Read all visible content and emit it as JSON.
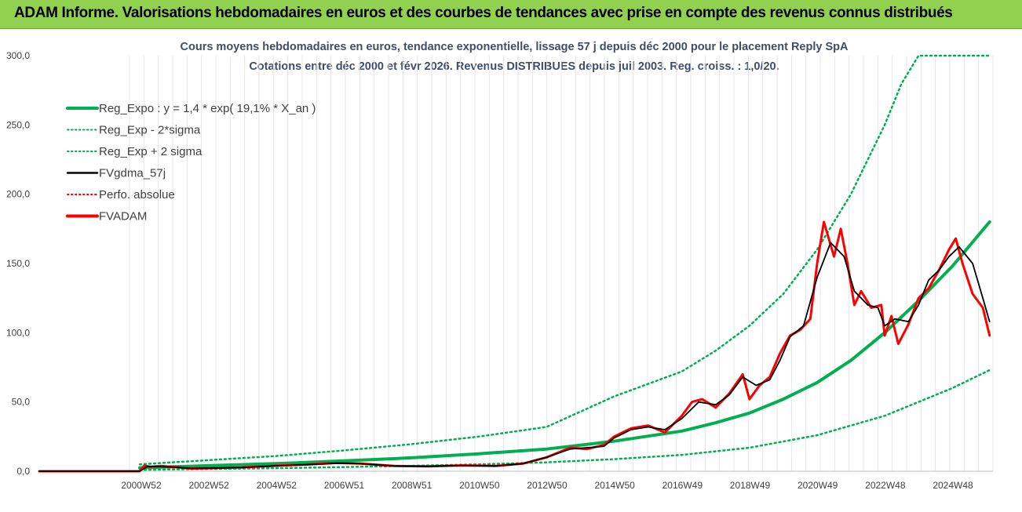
{
  "header": {
    "title": "ADAM Informe. Valorisations hebdomadaires en euros et des courbes de tendances avec prise en compte des revenus connus distribués"
  },
  "colors": {
    "header_bg": "#92d050",
    "reg_expo": "#00b050",
    "fvgdma": "#000000",
    "perfo": "#ff0000",
    "fvadam": "#ff0000",
    "grid": "#e6e6e6"
  },
  "chart_data": {
    "type": "line",
    "title_line1": "Cours moyens hebdomadaires en euros, tendance exponentielle, lissage 57 j depuis déc 2000 pour le placement Reply SpA",
    "title_line2": "Cotations entre déc 2000 et févr 2026. Revenus DISTRIBUES depuis juil 2003. Reg. croiss. : 1,0/20.",
    "y_ticks": [
      "0,0",
      "50,0",
      "100,0",
      "150,0",
      "200,0",
      "250,0",
      "300,0"
    ],
    "ylim": [
      0,
      300
    ],
    "x_ticks": [
      "2000W52",
      "2002W52",
      "2004W52",
      "2006W51",
      "2008W51",
      "2010W50",
      "2012W50",
      "2014W50",
      "2016W49",
      "2018W49",
      "2020W49",
      "2022W48",
      "2024W48"
    ],
    "xlim": [
      1998.0,
      2026.2
    ],
    "grid": "vertical",
    "legend_position": "top-left",
    "legend": [
      {
        "label": "Reg_Expo : y = 1,4 * exp( 19,1% *  X_an )",
        "style": "solid-thick",
        "color": "#00b050"
      },
      {
        "label": "Reg_Exp - 2*sigma",
        "style": "dotted",
        "color": "#00b050"
      },
      {
        "label": "Reg_Exp + 2 sigma",
        "style": "dotted",
        "color": "#00b050"
      },
      {
        "label": "FVgdma_57j",
        "style": "solid",
        "color": "#000000"
      },
      {
        "label": "Perfo. absolue",
        "style": "dotted",
        "color": "#ff0000"
      },
      {
        "label": "FVADAM",
        "style": "solid-thick",
        "color": "#ff0000"
      }
    ],
    "series": [
      {
        "name": "Reg_Expo : y = 1,4 * exp( 19,1% *  X_an )",
        "x": [
          2000.97,
          2003,
          2005,
          2007,
          2009,
          2011,
          2013,
          2015,
          2017,
          2018,
          2019,
          2020,
          2021,
          2022,
          2023,
          2024,
          2025,
          2026.1
        ],
        "y": [
          2.5,
          4.0,
          5.5,
          7.5,
          9.7,
          12.6,
          16.0,
          21.7,
          29.0,
          35.0,
          42.0,
          52.0,
          64.0,
          80.0,
          100.0,
          123.0,
          148.0,
          180.0
        ]
      },
      {
        "name": "Reg_Exp - 2*sigma",
        "x": [
          2000.97,
          2003,
          2005,
          2007,
          2009,
          2011,
          2013,
          2015,
          2017,
          2019,
          2021,
          2023,
          2025,
          2026.1
        ],
        "y": [
          1.0,
          1.6,
          2.2,
          3.0,
          3.9,
          5.0,
          6.4,
          8.7,
          11.8,
          17.0,
          26.0,
          40.0,
          60.0,
          73.0
        ]
      },
      {
        "name": "Reg_Exp + 2 sigma",
        "x": [
          2000.97,
          2003,
          2005,
          2007,
          2009,
          2011,
          2013,
          2015,
          2017,
          2018,
          2019,
          2020,
          2021,
          2022,
          2023,
          2023.5,
          2024,
          2025,
          2026.1
        ],
        "y": [
          5.0,
          8.0,
          11.0,
          15.0,
          19.5,
          25.0,
          32.0,
          54.0,
          72.0,
          87.0,
          105.0,
          128.0,
          160.0,
          200.0,
          250.0,
          280.0,
          300.0,
          300.0,
          300.0
        ]
      },
      {
        "name": "FVgdma_57j",
        "x": [
          1998.0,
          2000.97,
          2001.2,
          2002,
          2002.5,
          2003,
          2004,
          2005,
          2006,
          2006.8,
          2007.5,
          2008.5,
          2009.5,
          2010.5,
          2011.5,
          2012.3,
          2013,
          2013.7,
          2014.2,
          2014.7,
          2015,
          2015.5,
          2016,
          2016.5,
          2017,
          2017.5,
          2018,
          2018.4,
          2018.8,
          2019.2,
          2019.6,
          2019.9,
          2020.2,
          2020.6,
          2021,
          2021.4,
          2021.8,
          2022.1,
          2022.5,
          2022.8,
          2023.0,
          2023.3,
          2023.7,
          2024.0,
          2024.3,
          2024.6,
          2024.9,
          2025.2,
          2025.6,
          2025.9,
          2026.1
        ],
        "y": [
          0,
          0,
          3.5,
          3.0,
          2.0,
          2.2,
          2.8,
          3.8,
          4.8,
          5.8,
          5.5,
          3.8,
          3.5,
          4.2,
          3.8,
          5.5,
          10.0,
          16.0,
          17.0,
          18.0,
          24.0,
          30.0,
          32.0,
          30.0,
          38.0,
          50.0,
          48.0,
          55.0,
          68.0,
          62.0,
          66.0,
          80.0,
          97.0,
          105.0,
          140.0,
          165.0,
          155.0,
          130.0,
          120.0,
          118.0,
          105.0,
          110.0,
          108.0,
          120.0,
          138.0,
          145.0,
          155.0,
          162.0,
          150.0,
          125.0,
          108.0
        ]
      },
      {
        "name": "FVADAM",
        "x": [
          1998.0,
          2000.97,
          2001.1,
          2001.3,
          2001.6,
          2002,
          2002.5,
          2003,
          2004,
          2005,
          2006,
          2006.8,
          2007.5,
          2008.5,
          2009.5,
          2010.5,
          2011.5,
          2012.3,
          2013,
          2013.7,
          2014.2,
          2014.7,
          2015,
          2015.5,
          2016,
          2016.5,
          2017,
          2017.3,
          2017.6,
          2018,
          2018.4,
          2018.8,
          2019.0,
          2019.3,
          2019.6,
          2019.9,
          2020.2,
          2020.5,
          2020.8,
          2021,
          2021.2,
          2021.5,
          2021.7,
          2021.9,
          2022.1,
          2022.3,
          2022.6,
          2022.9,
          2023.0,
          2023.2,
          2023.4,
          2023.7,
          2024.0,
          2024.3,
          2024.6,
          2024.9,
          2025.1,
          2025.3,
          2025.6,
          2025.9,
          2026.1
        ],
        "y": [
          0,
          0,
          4.0,
          3.2,
          3.8,
          3.0,
          2.0,
          2.2,
          2.8,
          4.0,
          5.0,
          6.0,
          5.5,
          3.8,
          3.5,
          4.2,
          3.8,
          5.5,
          10.0,
          17.0,
          16.0,
          19.0,
          25.0,
          31.0,
          33.0,
          28.0,
          40.0,
          50.0,
          52.0,
          46.0,
          56.0,
          70.0,
          52.0,
          62.0,
          68.0,
          85.0,
          98.0,
          102.0,
          110.0,
          150.0,
          180.0,
          155.0,
          175.0,
          150.0,
          120.0,
          130.0,
          118.0,
          120.0,
          98.0,
          112.0,
          92.0,
          106.0,
          125.0,
          132.0,
          145.0,
          160.0,
          168.0,
          150.0,
          128.0,
          118.0,
          98.0
        ]
      }
    ]
  }
}
